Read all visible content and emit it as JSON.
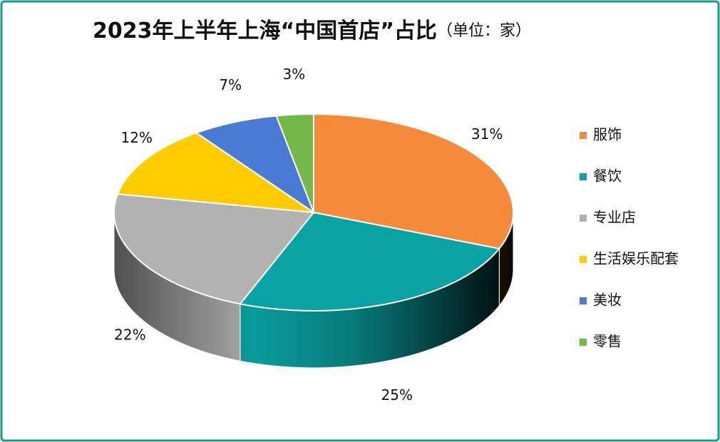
{
  "chart_data": {
    "type": "pie3d",
    "title": "2023年上半年上海“中国首店”占比",
    "subtitle": "（单位：家）",
    "categories": [
      "服饰",
      "餐饮",
      "专业店",
      "生活娱乐配套",
      "美妆",
      "零售"
    ],
    "values": [
      31,
      25,
      22,
      12,
      7,
      3
    ],
    "value_labels": [
      "31%",
      "25%",
      "22%",
      "12%",
      "7%",
      "3%"
    ],
    "colors": [
      "#F68A3B",
      "#0AA3A3",
      "#B2B2B2",
      "#FFCC00",
      "#4A7BD2",
      "#76B74A"
    ],
    "legend": "right"
  }
}
